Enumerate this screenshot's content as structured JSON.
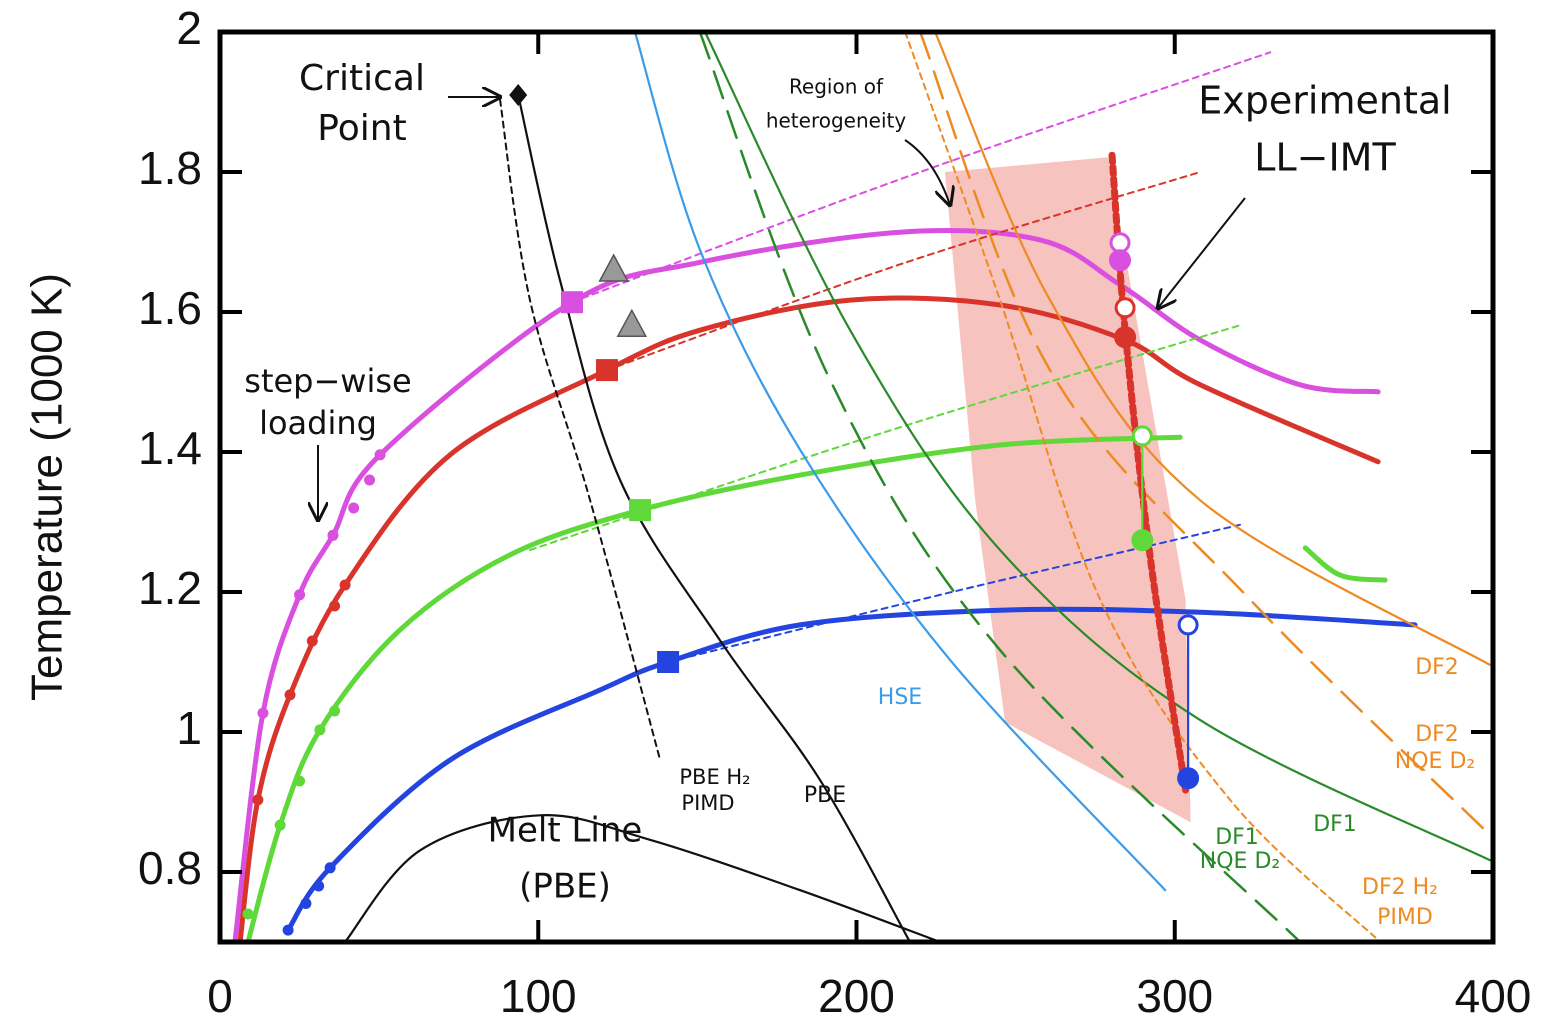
{
  "chart_data": {
    "type": "line",
    "ylabel": "Temperature (1000 K)",
    "xlim": [
      0,
      400
    ],
    "ylim": [
      0.7,
      2
    ],
    "xticks": [
      0,
      100,
      200,
      300,
      400
    ],
    "yticks": [
      0.8,
      1,
      1.2,
      1.4,
      1.6,
      1.8,
      2
    ],
    "region": {
      "color": "#f4a9a3",
      "x": [
        227.8,
        279.1,
        303.4,
        305,
        246.7,
        237.3
      ],
      "values": [
        1.8,
        1.821,
        1.189,
        0.871,
        1.014,
        1.331
      ]
    },
    "series": [
      {
        "color": "#d94fe0",
        "style": "thick",
        "x": [
          4.7,
          13.5,
          25,
          35.5,
          50.3,
          110.6,
          150.8,
          213.7,
          257.7,
          282.8,
          308,
          339.4,
          363.9
        ],
        "values": [
          0.7,
          1.027,
          1.196,
          1.281,
          1.396,
          1.614,
          1.671,
          1.714,
          1.703,
          1.639,
          1.56,
          1.496,
          1.486
        ]
      },
      {
        "color": "#d9342b",
        "style": "thick",
        "x": [
          6.3,
          11.9,
          22,
          39.3,
          72.3,
          121.6,
          150.8,
          198,
          245.1,
          284.4,
          308,
          363.9
        ],
        "values": [
          0.7,
          0.903,
          1.053,
          1.21,
          1.396,
          1.517,
          1.574,
          1.617,
          1.61,
          1.56,
          1.496,
          1.386
        ]
      },
      {
        "color": "#5fd83a",
        "style": "thick",
        "x": [
          8.8,
          18.9,
          31.4,
          56.6,
          91.1,
          132,
          182.3,
          245.1,
          301.7
        ],
        "values": [
          0.7,
          0.867,
          1.003,
          1.146,
          1.253,
          1.317,
          1.367,
          1.41,
          1.421
        ]
      },
      {
        "color": "#5fd83a",
        "style": "thick",
        "x": [
          341,
          352,
          366.1
        ],
        "values": [
          1.263,
          1.224,
          1.217
        ]
      },
      {
        "color": "#2444e0",
        "style": "thick",
        "x": [
          21.4,
          34.6,
          72.3,
          119.4,
          140.8,
          182.3,
          245.1,
          308,
          375.5
        ],
        "values": [
          0.717,
          0.806,
          0.96,
          1.06,
          1.1,
          1.153,
          1.174,
          1.171,
          1.153
        ]
      },
      {
        "color": "#d94fe0",
        "style": "dotted",
        "x": [
          110.6,
          220,
          330
        ],
        "values": [
          1.614,
          1.8,
          1.971
        ]
      },
      {
        "color": "#d9342b",
        "style": "dotted",
        "x": [
          121.6,
          215,
          308
        ],
        "values": [
          1.517,
          1.67,
          1.8
        ]
      },
      {
        "color": "#5fd83a",
        "style": "dotted",
        "x": [
          97.4,
          210,
          320.5
        ],
        "values": [
          1.26,
          1.43,
          1.581
        ]
      },
      {
        "color": "#2444e0",
        "style": "dotted",
        "x": [
          140.8,
          230,
          320.5
        ],
        "values": [
          1.1,
          1.2,
          1.296
        ]
      },
      {
        "color": "#111111",
        "style": "thin",
        "x": [
          93.7,
          106.8,
          125.7,
          157.1,
          188.6,
          216.8
        ],
        "values": [
          1.91,
          1.646,
          1.36,
          1.131,
          0.931,
          0.7
        ]
      },
      {
        "color": "#111111",
        "style": "dotted",
        "x": [
          88,
          97.4,
          116.3,
          138.3
        ],
        "values": [
          1.903,
          1.617,
          1.331,
          0.96
        ]
      },
      {
        "color": "#111111",
        "style": "thin",
        "x": [
          39.3,
          62.9,
          100.6,
          135.1,
          182.3,
          226.3
        ],
        "values": [
          0.7,
          0.831,
          0.881,
          0.846,
          0.774,
          0.7
        ]
      },
      {
        "color": "#3b9be8",
        "style": "thin",
        "x": [
          130.4,
          150.8,
          182.3,
          229.4,
          297
        ],
        "values": [
          2,
          1.689,
          1.403,
          1.103,
          0.774
        ]
      },
      {
        "color": "#2a8a2a",
        "style": "thin",
        "x": [
          152.4,
          198,
          245.1,
          308,
          399
        ],
        "values": [
          2,
          1.574,
          1.26,
          1.017,
          0.817
        ]
      },
      {
        "color": "#2a8a2a",
        "style": "dashed",
        "x": [
          150.8,
          191.7,
          245.1,
          339.4
        ],
        "values": [
          2,
          1.503,
          1.117,
          0.7
        ]
      },
      {
        "color": "#ee8a22",
        "style": "thin",
        "x": [
          224.7,
          260.8,
          308,
          399
        ],
        "values": [
          2,
          1.617,
          1.331,
          1.096
        ]
      },
      {
        "color": "#ee8a22",
        "style": "dashed",
        "x": [
          220,
          260.8,
          323.7,
          399
        ],
        "values": [
          2,
          1.517,
          1.189,
          0.853
        ]
      },
      {
        "color": "#ee8a22",
        "style": "dotted",
        "x": [
          215.3,
          245.1,
          276.6,
          317.4,
          364.6
        ],
        "values": [
          2,
          1.617,
          1.189,
          0.903,
          0.7
        ]
      },
      {
        "color": "#d9342b",
        "style": "heavydot",
        "x": [
          280.3,
          284.4,
          292.4,
          303.4
        ],
        "values": [
          1.824,
          1.574,
          1.246,
          0.917
        ]
      },
      {
        "color": "#5fd83a",
        "style": "thin",
        "x": [
          289.8,
          289.8
        ],
        "values": [
          1.423,
          1.274
        ]
      },
      {
        "color": "#2444e0",
        "style": "thin",
        "x": [
          304.2,
          304.2
        ],
        "values": [
          1.153,
          0.934
        ]
      }
    ],
    "markers": [
      {
        "shape": "square",
        "color": "#d94fe0",
        "x": [
          110.6
        ],
        "values": [
          1.614
        ]
      },
      {
        "shape": "square",
        "color": "#d9342b",
        "x": [
          121.6
        ],
        "values": [
          1.517
        ]
      },
      {
        "shape": "square",
        "color": "#5fd83a",
        "x": [
          132
        ],
        "values": [
          1.317
        ]
      },
      {
        "shape": "square",
        "color": "#2444e0",
        "x": [
          140.8
        ],
        "values": [
          1.1
        ]
      },
      {
        "shape": "triangle",
        "color": "#999999",
        "x": [
          123.7,
          129.4
        ],
        "values": [
          1.66,
          1.581
        ]
      },
      {
        "shape": "diamond",
        "color": "#111111",
        "x": [
          93.7
        ],
        "values": [
          1.91
        ]
      },
      {
        "shape": "open",
        "color": "#d94fe0",
        "x": [
          282.8
        ],
        "values": [
          1.699
        ]
      },
      {
        "shape": "open",
        "color": "#d9342b",
        "x": [
          284.4
        ],
        "values": [
          1.606
        ]
      },
      {
        "shape": "open",
        "color": "#5fd83a",
        "x": [
          289.8
        ],
        "values": [
          1.423
        ]
      },
      {
        "shape": "open",
        "color": "#2444e0",
        "x": [
          304.2
        ],
        "values": [
          1.153
        ]
      },
      {
        "shape": "circle",
        "color": "#d94fe0",
        "x": [
          282.8
        ],
        "values": [
          1.674
        ]
      },
      {
        "shape": "circle",
        "color": "#d9342b",
        "x": [
          284.4
        ],
        "values": [
          1.564
        ]
      },
      {
        "shape": "circle",
        "color": "#5fd83a",
        "x": [
          289.8
        ],
        "values": [
          1.274
        ]
      },
      {
        "shape": "circle",
        "color": "#2444e0",
        "x": [
          304.2
        ],
        "values": [
          0.934
        ]
      },
      {
        "shape": "dot",
        "color": "#d94fe0",
        "x": [
          13.5,
          25,
          35.5,
          42,
          47,
          50.3
        ],
        "values": [
          1.027,
          1.196,
          1.281,
          1.32,
          1.36,
          1.396
        ]
      },
      {
        "shape": "dot",
        "color": "#d9342b",
        "x": [
          11.9,
          22,
          29,
          36,
          39.3
        ],
        "values": [
          0.903,
          1.053,
          1.13,
          1.18,
          1.21
        ]
      },
      {
        "shape": "dot",
        "color": "#5fd83a",
        "x": [
          8.8,
          18.9,
          25,
          31.4,
          36
        ],
        "values": [
          0.74,
          0.867,
          0.93,
          1.003,
          1.03
        ]
      },
      {
        "shape": "dot",
        "color": "#2444e0",
        "x": [
          21.4,
          27,
          31,
          34.6
        ],
        "values": [
          0.717,
          0.755,
          0.78,
          0.806
        ]
      }
    ],
    "annotations": [
      {
        "lines": [
          "Critical",
          "Point"
        ],
        "color": "#111111"
      },
      {
        "lines": [
          "Region of",
          "heterogeneity"
        ],
        "color": "#111111"
      },
      {
        "lines": [
          "Experimental",
          "LL−IMT"
        ],
        "color": "#111111"
      },
      {
        "lines": [
          "step−wise",
          "loading"
        ],
        "color": "#111111"
      },
      {
        "lines": [
          "Melt Line",
          "(PBE)"
        ],
        "color": "#111111"
      },
      {
        "lines": [
          "PBE H₂",
          "PIMD"
        ],
        "color": "#111111"
      },
      {
        "lines": [
          "PBE"
        ],
        "color": "#111111"
      },
      {
        "lines": [
          "HSE"
        ],
        "color": "#3b9be8"
      },
      {
        "lines": [
          "DF2"
        ],
        "color": "#ee8a22"
      },
      {
        "lines": [
          "DF2",
          "NQE D₂"
        ],
        "color": "#ee8a22"
      },
      {
        "lines": [
          "DF1"
        ],
        "color": "#2a8a2a"
      },
      {
        "lines": [
          "DF1",
          "NQE D₂"
        ],
        "color": "#2a8a2a"
      },
      {
        "lines": [
          "DF2 H₂",
          "PIMD"
        ],
        "color": "#ee8a22"
      }
    ]
  }
}
